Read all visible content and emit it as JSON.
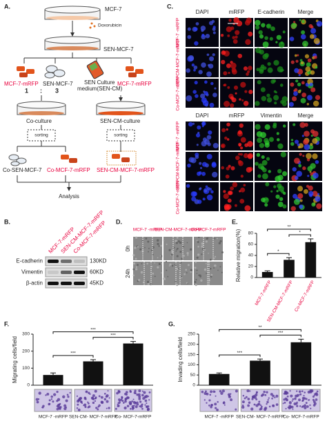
{
  "panels": {
    "A": {
      "label": "A.",
      "parent": "MCF-7",
      "drug": "Doxorubicin",
      "senescent": "SEN-MCF-7",
      "left_red": "MCF-7-mRFP",
      "left_sen": "SEN-MCF-7",
      "ratio_left": "1",
      "ratio_sep": ":",
      "ratio_right": "3",
      "medium": "SEN Culture",
      "medium_2": "medium(SEN-CM)",
      "right_red": "MCF-7-mRFP",
      "coculture": "Co-culture",
      "cm_culture": "SEN-CM-culture",
      "sorting_left": "sorting",
      "sorting_right": "sorting",
      "out_1": "Co-SEN-MCF-7",
      "out_2": "Co-MCF-7-mRFP",
      "out_3": "SEN-CM-MCF-7-mRFP",
      "analysis": "Analysis"
    },
    "B": {
      "label": "B.",
      "columns": [
        "MCF-7-mRFP",
        "SEN-CM-MCF-7-mRFP",
        "Co-MCF-7-mRFP"
      ],
      "rows": [
        {
          "name": "E-cadherin",
          "size": "130KD"
        },
        {
          "name": "Vimentin",
          "size": "60KD"
        },
        {
          "name": "β-actin",
          "size": "45KD"
        }
      ]
    },
    "C": {
      "label": "C.",
      "headers_top": [
        "DAPI",
        "mRFP",
        "E-cadherin",
        "Merge"
      ],
      "headers_bottom": [
        "DAPI",
        "mRFP",
        "Vimentin",
        "Merge"
      ],
      "rows": [
        "MCF-7 -mRFP",
        "SEN-CM-MCF-7-mRFP",
        "Co-MCF-7-mRFP"
      ]
    },
    "D": {
      "label": "D.",
      "columns": [
        "MCF-7 -mRFP",
        "SEN-CM-MCF-7-mRFP",
        "Co-MCF-7-mRFP"
      ],
      "rows": [
        "0h",
        "24h"
      ]
    }
  },
  "chart_data": [
    {
      "type": "bar",
      "panel": "E.",
      "ylabel": "Relative migration(%)",
      "categories": [
        "MCF-7-mRFP",
        "SEN-CM-MCF-7-mRFP",
        "Co-MCF-7-mRFP"
      ],
      "values": [
        10,
        32,
        64
      ],
      "errors": [
        2,
        4,
        6
      ],
      "significance": [
        "*",
        "*",
        "**"
      ],
      "color": "#111111",
      "ylim": [
        0,
        80
      ],
      "yticks": [
        0,
        20,
        40,
        60,
        80
      ]
    },
    {
      "type": "bar",
      "panel": "F.",
      "ylabel": "Migrating cells/field",
      "categories": [
        "MCF-7 -mRFP",
        "SEN-CM- MCF-7-mRFP",
        "Co- MCF-7-mRFP"
      ],
      "values": [
        60,
        140,
        245
      ],
      "errors": [
        12,
        10,
        12
      ],
      "significance": [
        "***",
        "***",
        "***"
      ],
      "color": "#111111",
      "ylim": [
        0,
        300
      ],
      "yticks": [
        0,
        100,
        200,
        300
      ]
    },
    {
      "type": "bar",
      "panel": "G.",
      "ylabel": "Invading cells/field",
      "categories": [
        "MCF-7 -mRFP",
        "SEN-CM- MCF-7-mRFP",
        "Co- MCF-7-mRFP"
      ],
      "values": [
        55,
        120,
        210
      ],
      "errors": [
        5,
        8,
        15
      ],
      "significance": [
        "***",
        "***",
        "**"
      ],
      "color": "#111111",
      "ylim": [
        0,
        250
      ],
      "yticks": [
        0,
        50,
        100,
        150,
        200,
        250
      ]
    }
  ]
}
